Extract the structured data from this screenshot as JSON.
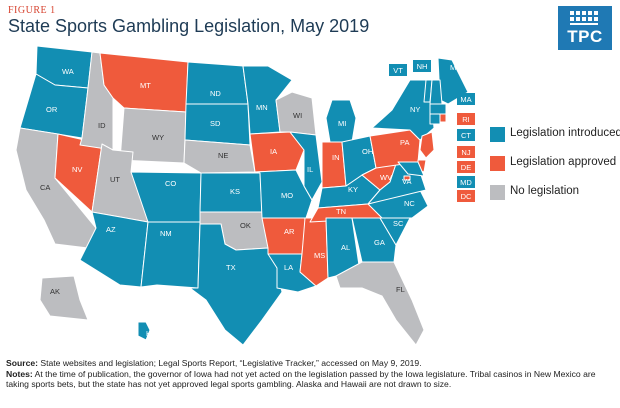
{
  "figure_label": "FIGURE 1",
  "title": "State Sports Gambling Legislation, May 2019",
  "logo": {
    "text": "TPC",
    "icon": "tpc-capitol-logo"
  },
  "colors": {
    "introduced": "#128eb3",
    "approved": "#ef5a3c",
    "none": "#bcbdc0",
    "border": "#ffffff",
    "title": "#1e3b55",
    "accent": "#d7432f"
  },
  "legend": [
    {
      "status": "introduced",
      "label": "Legislation introduced"
    },
    {
      "status": "approved",
      "label": "Legislation approved"
    },
    {
      "status": "none",
      "label": "No legislation"
    }
  ],
  "states": {
    "WA": "introduced",
    "OR": "introduced",
    "CA": "none",
    "NV": "approved",
    "ID": "none",
    "MT": "approved",
    "WY": "none",
    "UT": "none",
    "AZ": "introduced",
    "CO": "introduced",
    "NM": "introduced",
    "ND": "introduced",
    "SD": "introduced",
    "NE": "none",
    "KS": "introduced",
    "OK": "none",
    "TX": "introduced",
    "MN": "introduced",
    "IA": "approved",
    "MO": "introduced",
    "AR": "approved",
    "LA": "introduced",
    "WI": "none",
    "IL": "introduced",
    "MS": "approved",
    "MI": "introduced",
    "IN": "approved",
    "KY": "introduced",
    "TN": "approved",
    "AL": "introduced",
    "OH": "introduced",
    "WV": "approved",
    "GA": "introduced",
    "FL": "none",
    "SC": "introduced",
    "NC": "introduced",
    "VA": "introduced",
    "PA": "approved",
    "NY": "introduced",
    "ME": "introduced",
    "VT": "introduced",
    "NH": "introduced",
    "MA": "introduced",
    "RI": "approved",
    "CT": "introduced",
    "NJ": "approved",
    "DE": "approved",
    "MD": "introduced",
    "DC": "approved",
    "AK": "none",
    "HI": "introduced"
  },
  "notes": {
    "source_label": "Source:",
    "source_text": " State websites and legislation; Legal Sports Report, “Legislative Tracker,” accessed on May 9, 2019.",
    "notes_label": "Notes:",
    "notes_text": " At the time of publication, the governor of Iowa had not yet acted on the legislation passed by the Iowa legislature. Tribal casinos in New Mexico are taking sports bets, but the state has not yet approved legal sports gambling. Alaska and Hawaii are not drawn to size."
  }
}
